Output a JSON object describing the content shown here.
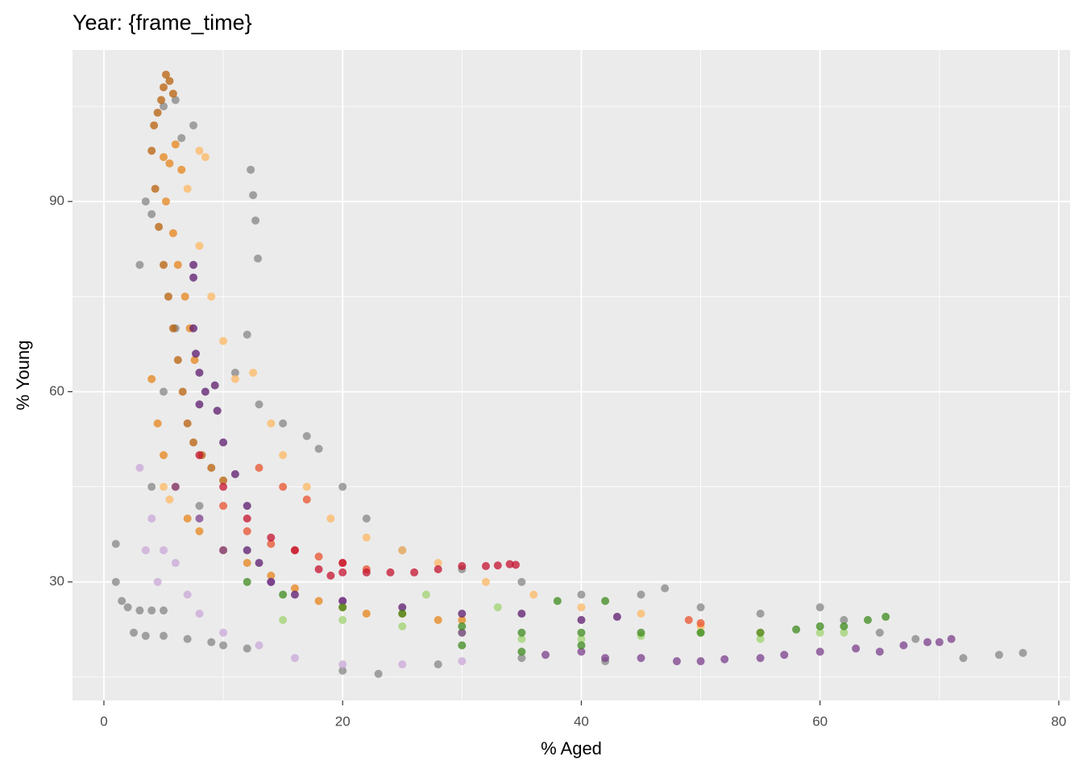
{
  "chart_data": {
    "type": "scatter",
    "title": "Year: {frame_time}",
    "x_label": "% Aged",
    "y_label": "% Young",
    "xlim": [
      -2.63,
      80.95
    ],
    "ylim": [
      11.3,
      113.9
    ],
    "xticks": [
      0,
      20,
      40,
      60,
      80
    ],
    "yticks": [
      30,
      60,
      90
    ],
    "x_minor_ticks": [
      10,
      30,
      50,
      70
    ],
    "y_minor_ticks": [
      15,
      45,
      75,
      105
    ],
    "grid": true,
    "background": "#ebebeb",
    "series": [
      {
        "color": "#858585",
        "x": [
          1,
          1,
          1.5,
          2,
          3,
          4,
          5,
          2.5,
          3.5,
          5,
          7,
          9,
          10,
          12,
          3,
          3.5,
          4,
          5,
          6,
          6.5,
          7.5,
          12.3,
          12.5,
          12.7,
          12.9,
          12,
          11,
          13,
          15,
          17,
          18,
          20,
          22,
          25,
          30,
          35,
          40,
          45,
          47,
          50,
          55,
          60,
          62,
          65,
          68,
          72,
          75,
          77,
          20,
          23,
          28,
          35,
          42,
          8,
          4,
          5,
          6
        ],
        "values": [
          36,
          30,
          27,
          26,
          25.5,
          25.5,
          25.5,
          22,
          21.5,
          21.5,
          21,
          20.5,
          20,
          19.5,
          80,
          90,
          88,
          105,
          106,
          100,
          102,
          95,
          91,
          87,
          81,
          69,
          63,
          58,
          55,
          53,
          51,
          45,
          40,
          35,
          32,
          30,
          28,
          28,
          29,
          26,
          25,
          26,
          24,
          22,
          21,
          18,
          18.5,
          18.8,
          16,
          15.5,
          17,
          18,
          17.5,
          42,
          45,
          60,
          70
        ]
      },
      {
        "color": "#c9a7d8",
        "x": [
          3,
          4,
          5,
          6,
          7,
          8,
          10,
          13,
          16,
          20,
          25,
          30,
          4.5,
          3.5
        ],
        "values": [
          48,
          40,
          35,
          33,
          28,
          25,
          22,
          20,
          18,
          17,
          17,
          17.5,
          30,
          35
        ]
      },
      {
        "color": "#fdb863",
        "x": [
          8,
          8.5,
          7,
          8,
          9,
          10,
          11,
          12.5,
          14,
          15,
          17,
          19,
          22,
          25,
          28,
          32,
          36,
          40,
          45,
          50,
          55,
          5,
          5.5
        ],
        "values": [
          98,
          97,
          92,
          83,
          75,
          68,
          62,
          63,
          55,
          50,
          45,
          40,
          37,
          35,
          33,
          30,
          28,
          26,
          25,
          23,
          22,
          45,
          43
        ]
      },
      {
        "color": "#9fd36f",
        "x": [
          15,
          20,
          25,
          30,
          35,
          40,
          45,
          50,
          55,
          60,
          62,
          27,
          33
        ],
        "values": [
          24,
          24,
          23,
          22,
          21,
          21,
          21.5,
          22,
          21,
          22,
          22,
          28,
          26
        ]
      },
      {
        "color": "#e6841a",
        "x": [
          5,
          5.5,
          6,
          6.5,
          5.2,
          5.8,
          6.2,
          6.8,
          7.2,
          7.6,
          4,
          4.5,
          5,
          6,
          7,
          8,
          10,
          12,
          14,
          16,
          18,
          20,
          22,
          25,
          28,
          30
        ],
        "values": [
          97,
          96,
          99,
          95,
          90,
          85,
          80,
          75,
          70,
          65,
          62,
          55,
          50,
          45,
          40,
          38,
          35,
          33,
          31,
          29,
          27,
          26,
          25,
          25,
          24,
          24
        ]
      },
      {
        "color": "#b8600b",
        "x": [
          4.2,
          4.5,
          4.8,
          5,
          5.2,
          5.5,
          5.8,
          4,
          4.3,
          4.6,
          5,
          5.4,
          5.8,
          6.2,
          6.6,
          7,
          7.5,
          8.2,
          9,
          10
        ],
        "values": [
          102,
          104,
          106,
          108,
          110,
          109,
          107,
          98,
          92,
          86,
          80,
          75,
          70,
          65,
          60,
          55,
          52,
          50,
          48,
          46
        ]
      },
      {
        "color": "#e8512e",
        "x": [
          10,
          12,
          14,
          16,
          18,
          20,
          22,
          17,
          15,
          13,
          49,
          50
        ],
        "values": [
          42,
          38,
          36,
          35,
          34,
          33,
          32,
          43,
          45,
          48,
          24,
          23.5
        ]
      },
      {
        "color": "#5c1a6e",
        "x": [
          7.5,
          7.5,
          7.5,
          7.7,
          8,
          8.5,
          9.5,
          9.3,
          8,
          10,
          11,
          12,
          12,
          13,
          14,
          16,
          20,
          25,
          30,
          35,
          40,
          43
        ],
        "values": [
          80,
          78,
          70,
          66,
          63,
          60,
          57,
          61,
          58,
          52,
          47,
          42,
          35,
          33,
          30,
          28,
          27,
          26,
          25,
          25,
          24,
          24.5
        ]
      },
      {
        "color": "#7b3f8c",
        "x": [
          6,
          8,
          10,
          14,
          20,
          30,
          40,
          45,
          48,
          50,
          52,
          55,
          57,
          60,
          63,
          65,
          67,
          69,
          70,
          71,
          37,
          42
        ],
        "values": [
          45,
          40,
          35,
          30,
          27,
          22,
          19,
          18,
          17.5,
          17.5,
          17.8,
          18,
          18.5,
          19,
          19.5,
          19,
          20,
          20.5,
          20.5,
          21,
          18.5,
          18
        ]
      },
      {
        "color": "#3d8a1e",
        "x": [
          12,
          15,
          20,
          25,
          30,
          35,
          40,
          45,
          50,
          55,
          58,
          60,
          62,
          64,
          65.5,
          42,
          38,
          30,
          35,
          40
        ],
        "values": [
          30,
          28,
          26,
          25,
          23,
          22,
          22,
          22,
          22,
          22,
          22.5,
          23,
          23,
          24,
          24.5,
          27,
          27,
          20,
          19,
          20
        ]
      },
      {
        "color": "#c4112f",
        "x": [
          18,
          19,
          20,
          22,
          24,
          26,
          28,
          30,
          32,
          33,
          34,
          34.5,
          12,
          14,
          16,
          20,
          10,
          8
        ],
        "values": [
          32,
          31,
          31.5,
          31.5,
          31.5,
          31.5,
          32,
          32.5,
          32.5,
          32.6,
          32.8,
          32.7,
          40,
          37,
          35,
          33,
          45,
          50
        ]
      }
    ]
  }
}
